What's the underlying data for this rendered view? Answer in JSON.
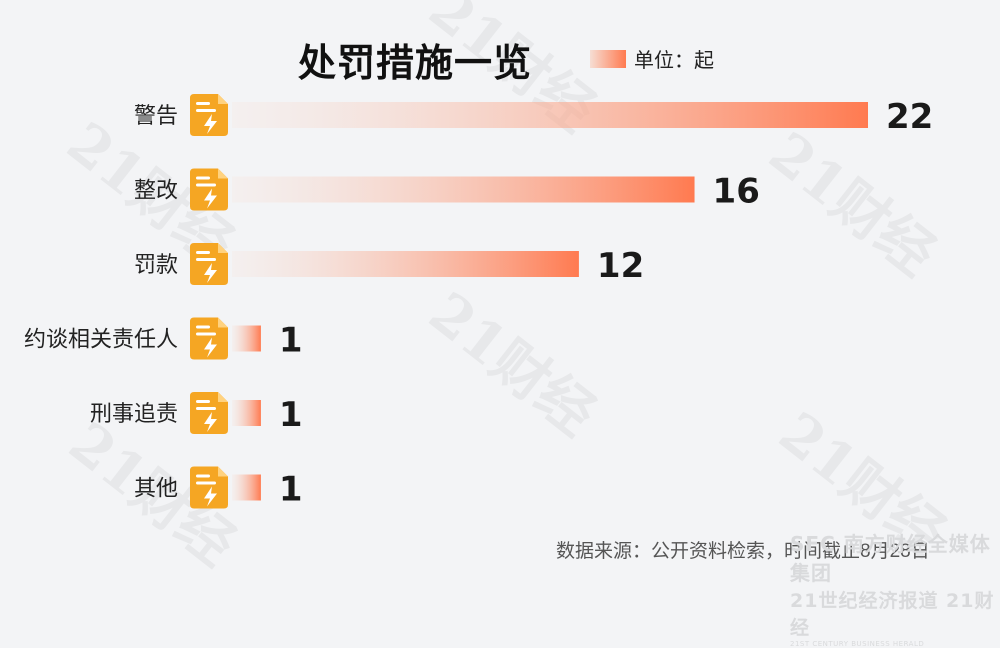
{
  "title": "处罚措施一览",
  "legend": {
    "label": "单位：起"
  },
  "source": "数据来源：公开资料检索，时间截止8月28日",
  "watermark": "21财经",
  "brand": {
    "line1": "SFC 南方财经全媒体集团",
    "line2": "21世纪经济报道 21财经",
    "line3": "21ST CENTURY BUSINESS HERALD"
  },
  "colors": {
    "bar_start": "#f6ded4",
    "bar_end": "#ff7a50",
    "icon_bg": "#f5a623",
    "value_text": "#1a1a1a"
  },
  "icon": "document-lightning-icon",
  "chart_data": {
    "type": "bar",
    "orientation": "horizontal",
    "categories": [
      "警告",
      "整改",
      "罚款",
      "约谈相关责任人",
      "刑事追责",
      "其他"
    ],
    "values": [
      22,
      16,
      12,
      1,
      1,
      1
    ],
    "unit": "起",
    "title": "处罚措施一览",
    "xlim": [
      0,
      22
    ]
  }
}
